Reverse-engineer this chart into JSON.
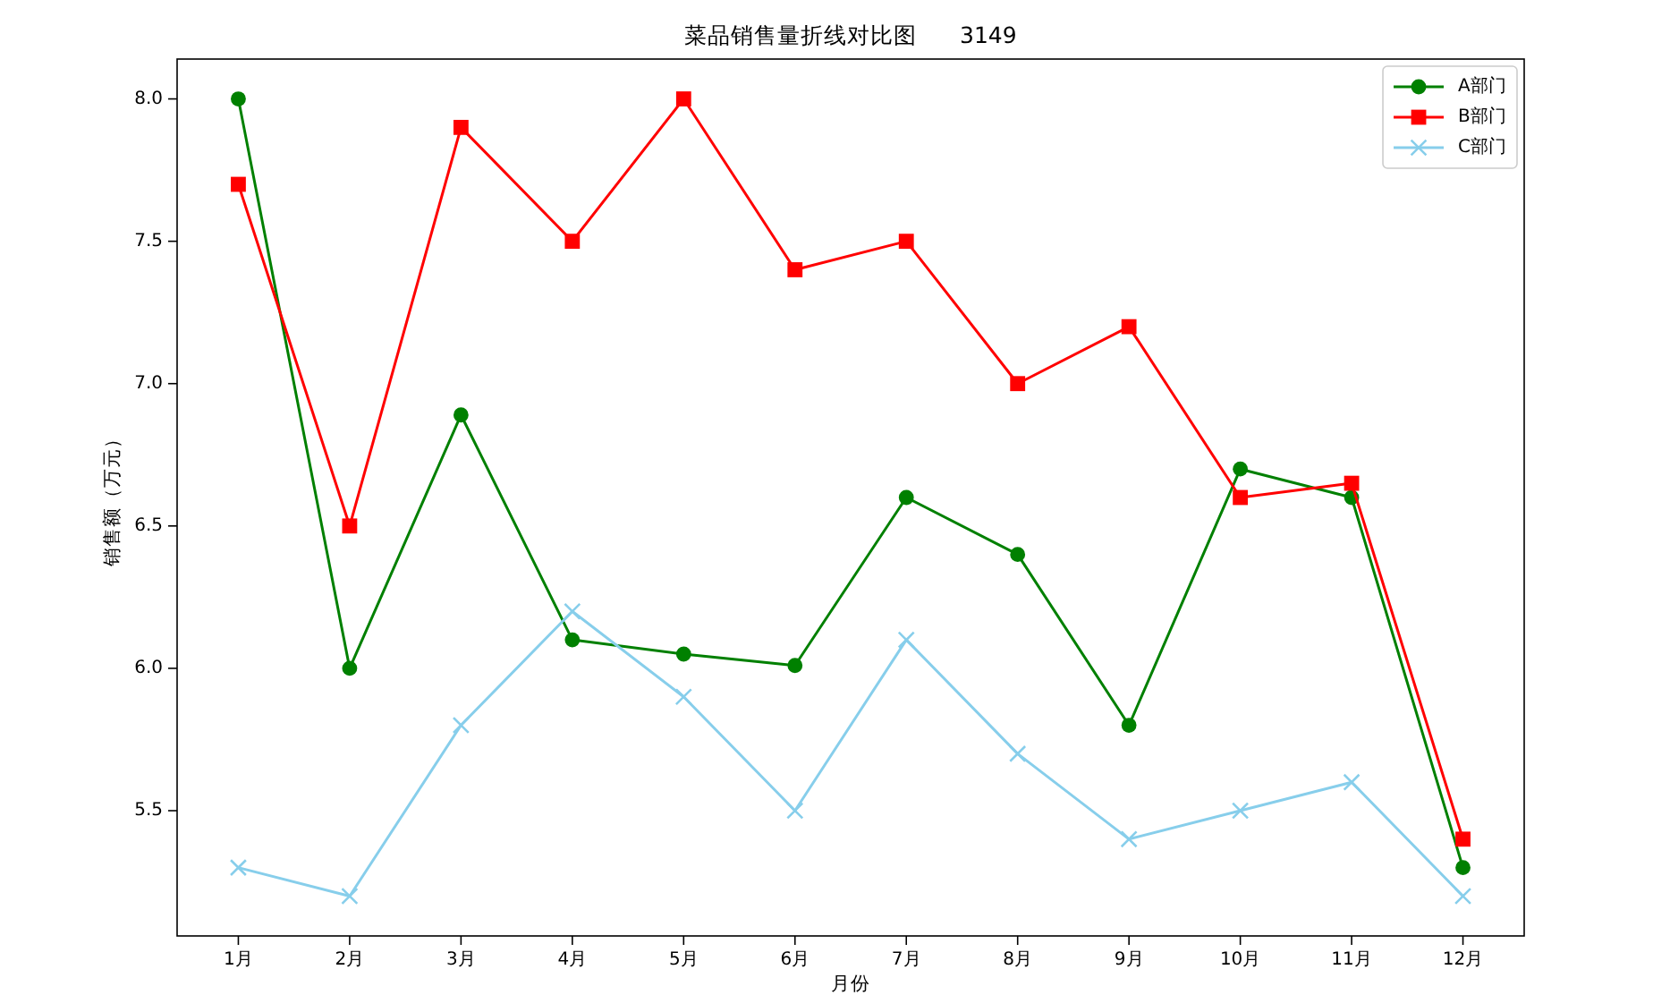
{
  "chart_data": {
    "type": "line",
    "title": "菜品销售量折线对比图      3149",
    "xlabel": "月份",
    "ylabel": "销售额（万元）",
    "categories": [
      "1月",
      "2月",
      "3月",
      "4月",
      "5月",
      "6月",
      "7月",
      "8月",
      "9月",
      "10月",
      "11月",
      "12月"
    ],
    "series": [
      {
        "name": "A部门",
        "color": "#008000",
        "marker": "circle",
        "values": [
          8.0,
          6.0,
          6.89,
          6.1,
          6.05,
          6.01,
          6.6,
          6.4,
          5.8,
          6.7,
          6.6,
          5.3
        ]
      },
      {
        "name": "B部门",
        "color": "#ff0000",
        "marker": "square",
        "values": [
          7.7,
          6.5,
          7.9,
          7.5,
          8.0,
          7.4,
          7.5,
          7.0,
          7.2,
          6.6,
          6.65,
          5.4
        ]
      },
      {
        "name": "C部门",
        "color": "#87ceeb",
        "marker": "cross",
        "values": [
          5.3,
          5.2,
          5.8,
          6.2,
          5.9,
          5.5,
          6.1,
          5.7,
          5.4,
          5.5,
          5.6,
          5.2
        ]
      }
    ],
    "ylim": [
      5.06,
      8.14
    ],
    "yticks": [
      5.5,
      {
        "value": 6.0,
        "label": "6.0"
      },
      6.5,
      {
        "value": 7.0,
        "label": "7.0"
      },
      7.5,
      {
        "value": 8.0,
        "label": "8.0"
      }
    ],
    "legend": "top right"
  }
}
